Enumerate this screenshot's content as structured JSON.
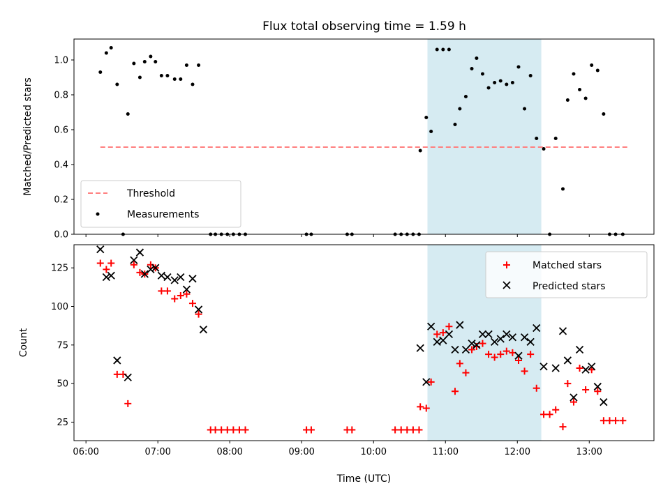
{
  "title": "Flux total observing time = 1.59 h",
  "xlabel": "Time (UTC)",
  "x_ticks": [
    "06:00",
    "07:00",
    "08:00",
    "09:00",
    "10:00",
    "11:00",
    "12:00",
    "13:00"
  ],
  "colors": {
    "threshold": "#ff7f7f",
    "measurements": "#000000",
    "matched": "#ff0000",
    "predicted": "#000000",
    "span": "#add8e6"
  },
  "chart_data": [
    {
      "type": "scatter",
      "ylabel": "Matched/Predicted stars",
      "xlim": [
        "05:50",
        "13:54"
      ],
      "ylim": [
        0,
        1.12
      ],
      "y_ticks": [
        "0.0",
        "0.2",
        "0.4",
        "0.6",
        "0.8",
        "1.0"
      ],
      "y_tick_values": [
        0,
        0.2,
        0.4,
        0.6,
        0.8,
        1.0
      ],
      "legend": [
        "Threshold",
        "Measurements"
      ],
      "legend_position": "lower-left",
      "highlight_span": [
        "10:45",
        "12:20"
      ],
      "series": [
        {
          "name": "Threshold",
          "style": "dashed-line",
          "points": [
            [
              "06:12",
              0.5
            ],
            [
              "13:33",
              0.5
            ]
          ]
        },
        {
          "name": "Measurements",
          "style": "dot",
          "points": [
            [
              "06:12",
              0.93
            ],
            [
              "06:17",
              1.04
            ],
            [
              "06:21",
              1.07
            ],
            [
              "06:26",
              0.86
            ],
            [
              "06:31",
              0.0
            ],
            [
              "06:35",
              0.69
            ],
            [
              "06:40",
              0.98
            ],
            [
              "06:45",
              0.9
            ],
            [
              "06:49",
              0.99
            ],
            [
              "06:54",
              1.02
            ],
            [
              "06:58",
              0.99
            ],
            [
              "07:03",
              0.91
            ],
            [
              "07:08",
              0.91
            ],
            [
              "07:14",
              0.89
            ],
            [
              "07:19",
              0.89
            ],
            [
              "07:24",
              0.97
            ],
            [
              "07:29",
              0.86
            ],
            [
              "07:34",
              0.97
            ],
            [
              "07:44",
              0.0
            ],
            [
              "07:48",
              0.0
            ],
            [
              "07:53",
              0.0
            ],
            [
              "07:58",
              0.0
            ],
            [
              "08:03",
              0.0
            ],
            [
              "08:08",
              0.0
            ],
            [
              "08:13",
              0.0
            ],
            [
              "09:04",
              0.0
            ],
            [
              "09:08",
              0.0
            ],
            [
              "09:38",
              0.0
            ],
            [
              "09:42",
              0.0
            ],
            [
              "10:18",
              0.0
            ],
            [
              "10:23",
              0.0
            ],
            [
              "10:28",
              0.0
            ],
            [
              "10:33",
              0.0
            ],
            [
              "10:38",
              0.0
            ],
            [
              "10:39",
              0.48
            ],
            [
              "10:44",
              0.67
            ],
            [
              "10:48",
              0.59
            ],
            [
              "10:53",
              1.06
            ],
            [
              "10:58",
              1.06
            ],
            [
              "11:03",
              1.06
            ],
            [
              "11:08",
              0.63
            ],
            [
              "11:12",
              0.72
            ],
            [
              "11:17",
              0.79
            ],
            [
              "11:22",
              0.95
            ],
            [
              "11:26",
              1.01
            ],
            [
              "11:31",
              0.92
            ],
            [
              "11:36",
              0.84
            ],
            [
              "11:41",
              0.87
            ],
            [
              "11:46",
              0.88
            ],
            [
              "11:51",
              0.86
            ],
            [
              "11:56",
              0.87
            ],
            [
              "12:01",
              0.96
            ],
            [
              "12:06",
              0.72
            ],
            [
              "12:11",
              0.91
            ],
            [
              "12:16",
              0.55
            ],
            [
              "12:22",
              0.49
            ],
            [
              "12:27",
              0.0
            ],
            [
              "12:32",
              0.55
            ],
            [
              "12:38",
              0.26
            ],
            [
              "12:42",
              0.77
            ],
            [
              "12:47",
              0.92
            ],
            [
              "12:52",
              0.83
            ],
            [
              "12:57",
              0.78
            ],
            [
              "13:02",
              0.97
            ],
            [
              "13:07",
              0.94
            ],
            [
              "13:12",
              0.69
            ],
            [
              "13:17",
              0.0
            ],
            [
              "13:22",
              0.0
            ],
            [
              "13:28",
              0.0
            ]
          ]
        }
      ]
    },
    {
      "type": "scatter",
      "ylabel": "Count",
      "xlim": [
        "05:50",
        "13:54"
      ],
      "ylim": [
        13,
        140
      ],
      "y_ticks": [
        "25",
        "50",
        "75",
        "100",
        "125"
      ],
      "y_tick_values": [
        25,
        50,
        75,
        100,
        125
      ],
      "legend": [
        "Matched stars",
        "Predicted stars"
      ],
      "legend_position": "upper-right",
      "highlight_span": [
        "10:45",
        "12:20"
      ],
      "series": [
        {
          "name": "Matched stars",
          "style": "plus",
          "points": [
            [
              "06:12",
              128
            ],
            [
              "06:17",
              124
            ],
            [
              "06:21",
              128
            ],
            [
              "06:26",
              56
            ],
            [
              "06:31",
              56
            ],
            [
              "06:35",
              37
            ],
            [
              "06:40",
              127
            ],
            [
              "06:45",
              122
            ],
            [
              "06:49",
              121
            ],
            [
              "06:54",
              127
            ],
            [
              "06:58",
              125
            ],
            [
              "07:03",
              110
            ],
            [
              "07:08",
              110
            ],
            [
              "07:14",
              105
            ],
            [
              "07:19",
              107
            ],
            [
              "07:24",
              108
            ],
            [
              "07:29",
              102
            ],
            [
              "07:34",
              95
            ],
            [
              "07:44",
              20
            ],
            [
              "07:48",
              20
            ],
            [
              "07:53",
              20
            ],
            [
              "07:58",
              20
            ],
            [
              "08:03",
              20
            ],
            [
              "08:08",
              20
            ],
            [
              "08:13",
              20
            ],
            [
              "09:04",
              20
            ],
            [
              "09:08",
              20
            ],
            [
              "09:38",
              20
            ],
            [
              "09:42",
              20
            ],
            [
              "10:18",
              20
            ],
            [
              "10:23",
              20
            ],
            [
              "10:28",
              20
            ],
            [
              "10:33",
              20
            ],
            [
              "10:38",
              20
            ],
            [
              "10:39",
              35
            ],
            [
              "10:44",
              34
            ],
            [
              "10:48",
              51
            ],
            [
              "10:53",
              82
            ],
            [
              "10:58",
              83
            ],
            [
              "11:03",
              87
            ],
            [
              "11:08",
              45
            ],
            [
              "11:12",
              63
            ],
            [
              "11:17",
              57
            ],
            [
              "11:22",
              72
            ],
            [
              "11:26",
              74
            ],
            [
              "11:31",
              76
            ],
            [
              "11:36",
              69
            ],
            [
              "11:41",
              67
            ],
            [
              "11:46",
              69
            ],
            [
              "11:51",
              71
            ],
            [
              "11:56",
              70
            ],
            [
              "12:01",
              65
            ],
            [
              "12:06",
              58
            ],
            [
              "12:11",
              69
            ],
            [
              "12:16",
              47
            ],
            [
              "12:22",
              30
            ],
            [
              "12:27",
              30
            ],
            [
              "12:32",
              33
            ],
            [
              "12:38",
              22
            ],
            [
              "12:42",
              50
            ],
            [
              "12:47",
              38
            ],
            [
              "12:52",
              60
            ],
            [
              "12:57",
              46
            ],
            [
              "13:02",
              59
            ],
            [
              "13:07",
              45
            ],
            [
              "13:12",
              26
            ],
            [
              "13:17",
              26
            ],
            [
              "13:22",
              26
            ],
            [
              "13:28",
              26
            ]
          ]
        },
        {
          "name": "Predicted stars",
          "style": "x",
          "points": [
            [
              "06:12",
              137
            ],
            [
              "06:17",
              119
            ],
            [
              "06:21",
              120
            ],
            [
              "06:26",
              65
            ],
            [
              "06:35",
              54
            ],
            [
              "06:40",
              130
            ],
            [
              "06:45",
              135
            ],
            [
              "06:49",
              121
            ],
            [
              "06:54",
              124
            ],
            [
              "06:58",
              125
            ],
            [
              "07:03",
              120
            ],
            [
              "07:08",
              119
            ],
            [
              "07:14",
              117
            ],
            [
              "07:19",
              119
            ],
            [
              "07:24",
              111
            ],
            [
              "07:29",
              118
            ],
            [
              "07:34",
              98
            ],
            [
              "07:38",
              85
            ],
            [
              "10:39",
              73
            ],
            [
              "10:44",
              51
            ],
            [
              "10:48",
              87
            ],
            [
              "10:53",
              77
            ],
            [
              "10:58",
              78
            ],
            [
              "11:03",
              82
            ],
            [
              "11:08",
              72
            ],
            [
              "11:12",
              88
            ],
            [
              "11:17",
              72
            ],
            [
              "11:22",
              76
            ],
            [
              "11:26",
              75
            ],
            [
              "11:31",
              82
            ],
            [
              "11:36",
              82
            ],
            [
              "11:41",
              77
            ],
            [
              "11:46",
              79
            ],
            [
              "11:51",
              82
            ],
            [
              "11:56",
              80
            ],
            [
              "12:01",
              68
            ],
            [
              "12:06",
              80
            ],
            [
              "12:11",
              77
            ],
            [
              "12:16",
              86
            ],
            [
              "12:22",
              61
            ],
            [
              "12:32",
              60
            ],
            [
              "12:38",
              84
            ],
            [
              "12:42",
              65
            ],
            [
              "12:47",
              41
            ],
            [
              "12:52",
              72
            ],
            [
              "12:57",
              59
            ],
            [
              "13:02",
              61
            ],
            [
              "13:07",
              48
            ],
            [
              "13:12",
              38
            ]
          ]
        }
      ]
    }
  ]
}
